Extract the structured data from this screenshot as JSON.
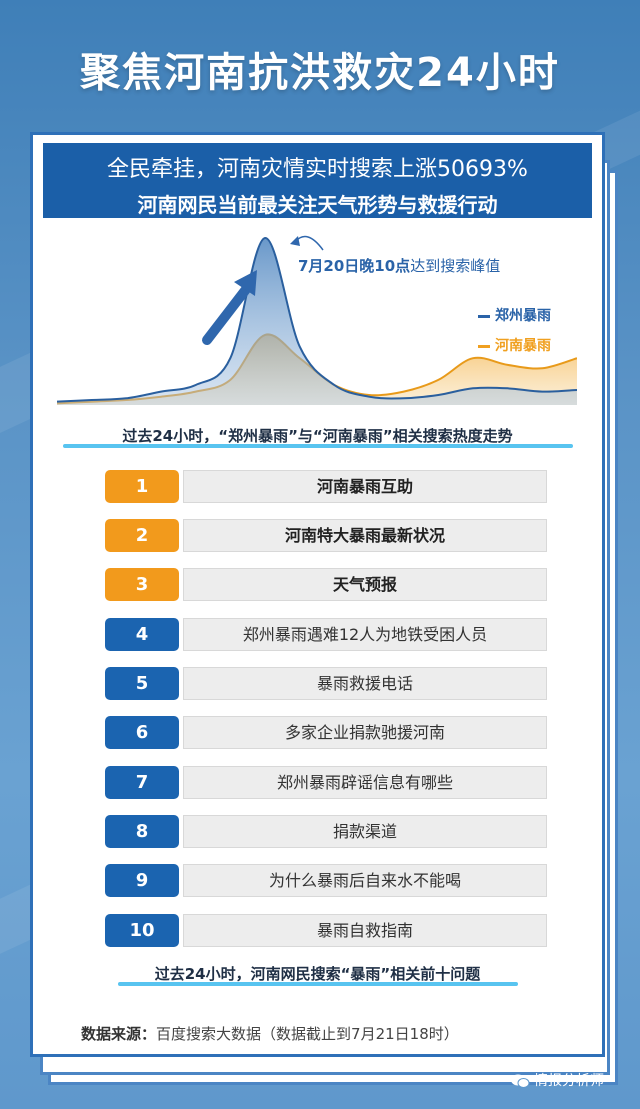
{
  "header": {
    "title": "聚焦河南抗洪救灾24小时"
  },
  "banner": {
    "line1": "全民牵挂，河南灾情实时搜索上涨50693%",
    "line2": "河南网民当前最关注天气形势与救援行动"
  },
  "trend": {
    "peak_label_bold": "7月20日晚10点",
    "peak_label_rest": "达到搜索峰值",
    "legend": [
      {
        "name": "郑州暴雨",
        "color": "#2a63a8"
      },
      {
        "name": "河南暴雨",
        "color": "#f0a020"
      }
    ],
    "caption": "过去24小时，“郑州暴雨”与“河南暴雨”相关搜索热度走势"
  },
  "chart_data": {
    "type": "area",
    "title": "",
    "xlabel": "",
    "ylabel": "",
    "series": [
      {
        "name": "郑州暴雨",
        "values": [
          2,
          3,
          4,
          8,
          12,
          28,
          100,
          35,
          12,
          5,
          4,
          6,
          10,
          10,
          8,
          9
        ]
      },
      {
        "name": "河南暴雨",
        "values": [
          1,
          2,
          3,
          5,
          8,
          15,
          42,
          28,
          12,
          6,
          8,
          15,
          28,
          24,
          22,
          28
        ]
      }
    ]
  },
  "ranking": {
    "items": [
      {
        "rank": "1",
        "text": "河南暴雨互助",
        "color": "orange"
      },
      {
        "rank": "2",
        "text": "河南特大暴雨最新状况",
        "color": "orange"
      },
      {
        "rank": "3",
        "text": "天气预报",
        "color": "orange"
      },
      {
        "rank": "4",
        "text": "郑州暴雨遇难12人为地铁受困人员",
        "color": "blue"
      },
      {
        "rank": "5",
        "text": "暴雨救援电话",
        "color": "blue"
      },
      {
        "rank": "6",
        "text": "多家企业捐款驰援河南",
        "color": "blue"
      },
      {
        "rank": "7",
        "text": "郑州暴雨辟谣信息有哪些",
        "color": "blue"
      },
      {
        "rank": "8",
        "text": "捐款渠道",
        "color": "blue"
      },
      {
        "rank": "9",
        "text": "为什么暴雨后自来水不能喝",
        "color": "blue"
      },
      {
        "rank": "10",
        "text": "暴雨自救指南",
        "color": "blue"
      }
    ],
    "caption": "过去24小时，河南网民搜索“暴雨”相关前十问题"
  },
  "source": {
    "label": "数据来源：",
    "name": "百度搜索大数据",
    "note": "（数据截止到7月21日18时）"
  },
  "watermark": {
    "text": "情报分析师",
    "icon": "wechat-icon"
  }
}
